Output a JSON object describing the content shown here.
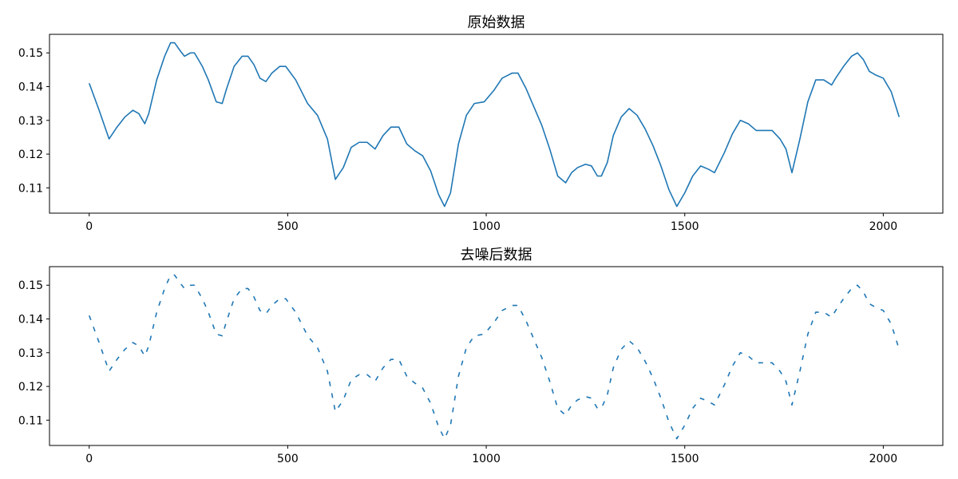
{
  "chart_data": [
    {
      "type": "line",
      "title": "原始数据",
      "xlim": [
        -100,
        2150
      ],
      "ylim": [
        0.1025,
        0.1555
      ],
      "xticks": [
        0,
        500,
        1000,
        1500,
        2000
      ],
      "yticks": [
        0.11,
        0.12,
        0.13,
        0.14,
        0.15
      ],
      "xtick_labels": [
        "0",
        "500",
        "1000",
        "1500",
        "2000"
      ],
      "ytick_labels": [
        "0.11",
        "0.12",
        "0.13",
        "0.14",
        "0.15"
      ],
      "grid": false,
      "series": [
        {
          "color": "#1f77b4",
          "x": [
            0,
            25,
            50,
            70,
            90,
            110,
            125,
            140,
            150,
            170,
            190,
            205,
            215,
            230,
            240,
            255,
            265,
            285,
            300,
            320,
            335,
            345,
            365,
            385,
            400,
            415,
            430,
            445,
            460,
            480,
            495,
            520,
            550,
            575,
            600,
            620,
            640,
            660,
            680,
            700,
            720,
            740,
            760,
            780,
            800,
            820,
            840,
            860,
            880,
            895,
            910,
            930,
            950,
            970,
            995,
            1020,
            1040,
            1065,
            1080,
            1100,
            1120,
            1140,
            1160,
            1180,
            1200,
            1215,
            1230,
            1250,
            1265,
            1280,
            1290,
            1305,
            1320,
            1340,
            1360,
            1380,
            1400,
            1420,
            1440,
            1460,
            1480,
            1500,
            1520,
            1540,
            1560,
            1575,
            1600,
            1620,
            1640,
            1660,
            1680,
            1700,
            1720,
            1740,
            1755,
            1770,
            1790,
            1810,
            1830,
            1850,
            1870,
            1880,
            1900,
            1920,
            1935,
            1950,
            1965,
            1980,
            2000,
            2020,
            2040
          ],
          "y": [
            0.141,
            0.133,
            0.1245,
            0.128,
            0.131,
            0.133,
            0.132,
            0.129,
            0.132,
            0.142,
            0.149,
            0.153,
            0.153,
            0.1505,
            0.149,
            0.15,
            0.15,
            0.146,
            0.142,
            0.1355,
            0.135,
            0.139,
            0.146,
            0.149,
            0.149,
            0.1465,
            0.1425,
            0.1415,
            0.144,
            0.146,
            0.146,
            0.142,
            0.135,
            0.1315,
            0.1245,
            0.1125,
            0.116,
            0.122,
            0.1235,
            0.1235,
            0.1215,
            0.1255,
            0.128,
            0.128,
            0.123,
            0.121,
            0.1195,
            0.115,
            0.108,
            0.1045,
            0.1085,
            0.123,
            0.1315,
            0.135,
            0.1355,
            0.139,
            0.1425,
            0.144,
            0.144,
            0.1395,
            0.134,
            0.1285,
            0.1215,
            0.1135,
            0.1115,
            0.1145,
            0.116,
            0.117,
            0.1165,
            0.1135,
            0.1135,
            0.1175,
            0.1255,
            0.131,
            0.1335,
            0.1315,
            0.1275,
            0.1225,
            0.1165,
            0.1095,
            0.1045,
            0.1085,
            0.1135,
            0.1165,
            0.1155,
            0.1145,
            0.1205,
            0.126,
            0.13,
            0.129,
            0.127,
            0.127,
            0.127,
            0.1245,
            0.1215,
            0.1145,
            0.1245,
            0.1355,
            0.142,
            0.142,
            0.1405,
            0.1425,
            0.146,
            0.149,
            0.15,
            0.148,
            0.1445,
            0.1435,
            0.1425,
            0.1385,
            0.131
          ]
        }
      ]
    },
    {
      "type": "line",
      "title": "去噪后数据",
      "xlim": [
        -100,
        2150
      ],
      "ylim": [
        0.1025,
        0.1555
      ],
      "xticks": [
        0,
        500,
        1000,
        1500,
        2000
      ],
      "yticks": [
        0.11,
        0.12,
        0.13,
        0.14,
        0.15
      ],
      "xtick_labels": [
        "0",
        "500",
        "1000",
        "1500",
        "2000"
      ],
      "ytick_labels": [
        "0.11",
        "0.12",
        "0.13",
        "0.14",
        "0.15"
      ],
      "grid": false,
      "series": [
        {
          "color": "#1f77b4",
          "x": [
            0,
            25,
            50,
            70,
            90,
            110,
            125,
            140,
            150,
            170,
            190,
            205,
            215,
            230,
            240,
            255,
            265,
            285,
            300,
            320,
            335,
            345,
            365,
            385,
            400,
            415,
            430,
            445,
            460,
            480,
            495,
            520,
            550,
            575,
            600,
            620,
            640,
            660,
            680,
            700,
            720,
            740,
            760,
            780,
            800,
            820,
            840,
            860,
            880,
            895,
            910,
            930,
            950,
            970,
            995,
            1020,
            1040,
            1065,
            1080,
            1100,
            1120,
            1140,
            1160,
            1180,
            1200,
            1215,
            1230,
            1250,
            1265,
            1280,
            1290,
            1305,
            1320,
            1340,
            1360,
            1380,
            1400,
            1420,
            1440,
            1460,
            1480,
            1500,
            1520,
            1540,
            1560,
            1575,
            1600,
            1620,
            1640,
            1660,
            1680,
            1700,
            1720,
            1740,
            1755,
            1770,
            1790,
            1810,
            1830,
            1850,
            1870,
            1880,
            1900,
            1920,
            1935,
            1950,
            1965,
            1980,
            2000,
            2020,
            2040
          ],
          "y": [
            0.141,
            0.133,
            0.1245,
            0.128,
            0.131,
            0.133,
            0.132,
            0.129,
            0.132,
            0.142,
            0.149,
            0.153,
            0.153,
            0.1505,
            0.149,
            0.15,
            0.15,
            0.146,
            0.142,
            0.1355,
            0.135,
            0.139,
            0.146,
            0.149,
            0.149,
            0.1465,
            0.1425,
            0.1415,
            0.144,
            0.146,
            0.146,
            0.142,
            0.135,
            0.1315,
            0.1245,
            0.1125,
            0.116,
            0.122,
            0.1235,
            0.1235,
            0.1215,
            0.1255,
            0.128,
            0.128,
            0.123,
            0.121,
            0.1195,
            0.115,
            0.108,
            0.1045,
            0.1085,
            0.123,
            0.1315,
            0.135,
            0.1355,
            0.139,
            0.1425,
            0.144,
            0.144,
            0.1395,
            0.134,
            0.1285,
            0.1215,
            0.1135,
            0.1115,
            0.1145,
            0.116,
            0.117,
            0.1165,
            0.1135,
            0.1135,
            0.1175,
            0.1255,
            0.131,
            0.1335,
            0.1315,
            0.1275,
            0.1225,
            0.1165,
            0.1095,
            0.1045,
            0.1085,
            0.1135,
            0.1165,
            0.1155,
            0.1145,
            0.1205,
            0.126,
            0.13,
            0.129,
            0.127,
            0.127,
            0.127,
            0.1245,
            0.1215,
            0.1145,
            0.1245,
            0.1355,
            0.142,
            0.142,
            0.1405,
            0.1425,
            0.146,
            0.149,
            0.15,
            0.148,
            0.1445,
            0.1435,
            0.1425,
            0.1385,
            0.131
          ],
          "line_style": "dashed"
        }
      ]
    }
  ]
}
